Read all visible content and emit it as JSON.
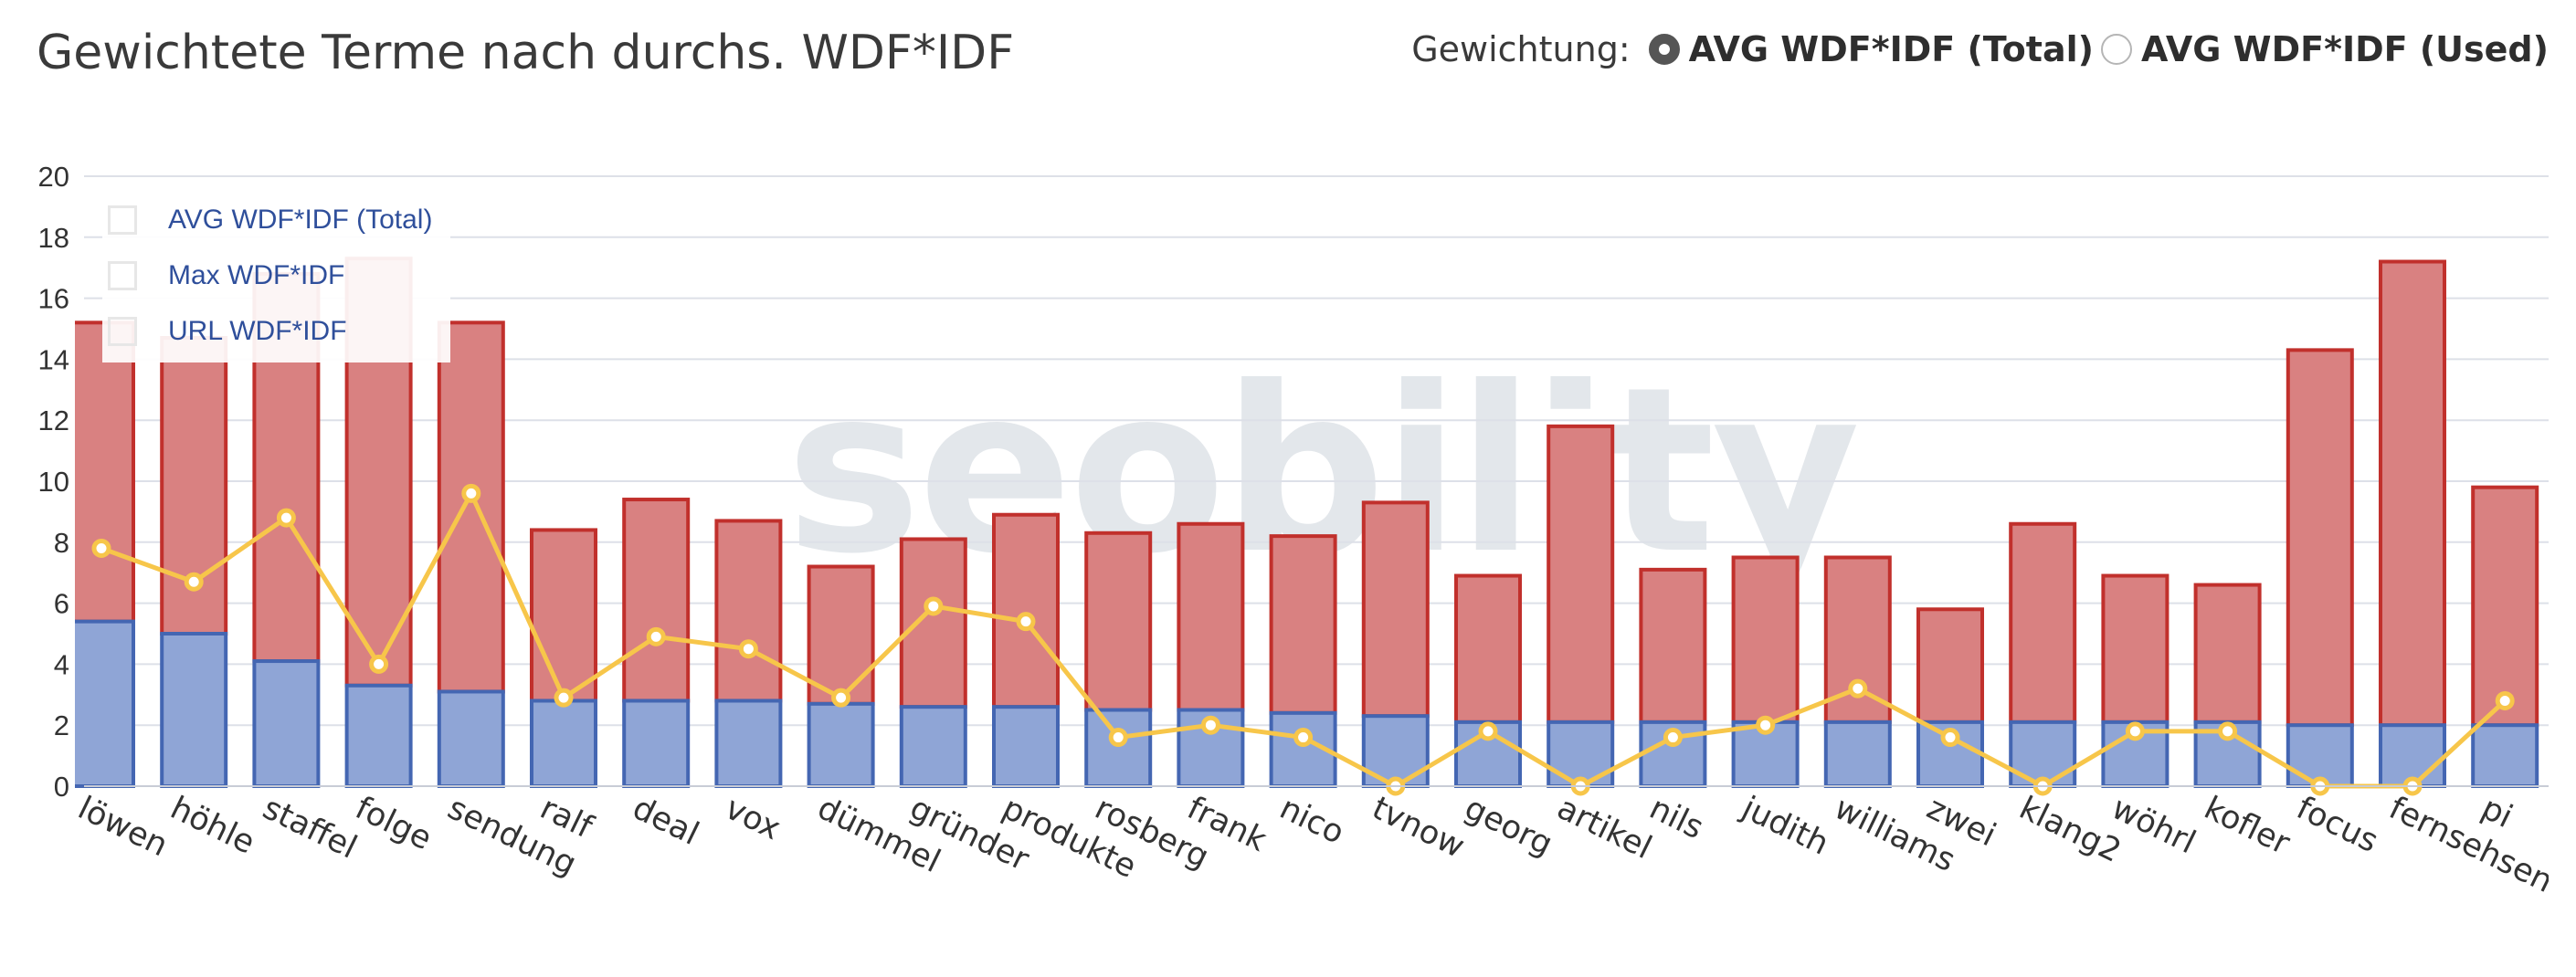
{
  "header": {
    "title": "Gewichtete Terme nach durchs. WDF*IDF",
    "weighting_label": "Gewichtung:",
    "options": [
      {
        "label": "AVG WDF*IDF (Total)",
        "checked": true
      },
      {
        "label": "AVG WDF*IDF (Used)",
        "checked": false
      }
    ]
  },
  "watermark": "seobility",
  "colors": {
    "avg_fill": "#8fa5d6",
    "avg_stroke": "#4466b2",
    "avg_legend": "#4466b2",
    "max_fill": "#d98181",
    "max_stroke": "#c1302c",
    "max_legend": "#c83232",
    "url_line": "#f7c64a",
    "url_legend": "#ffd35c",
    "grid": "#dde0e8",
    "axis_text": "#333333"
  },
  "legend": [
    {
      "label": "AVG WDF*IDF (Total)",
      "color": "#4466b2"
    },
    {
      "label": "Max WDF*IDF",
      "color": "#c83232"
    },
    {
      "label": "URL WDF*IDF",
      "color": "#ffd35c"
    }
  ],
  "chart_data": {
    "type": "bar",
    "stacked": true,
    "ylim": [
      0,
      20
    ],
    "yticks": [
      0,
      2,
      4,
      6,
      8,
      10,
      12,
      14,
      16,
      18,
      20
    ],
    "grid": true,
    "legend_position": "top-left",
    "categories": [
      "löwen",
      "höhle",
      "staffel",
      "folge",
      "sendung",
      "ralf",
      "deal",
      "vox",
      "dümmel",
      "gründer",
      "produkte",
      "rosberg",
      "frank",
      "nico",
      "tvnow",
      "georg",
      "artikel",
      "nils",
      "judith",
      "williams",
      "zwei",
      "klang2",
      "wöhrl",
      "kofler",
      "focus",
      "fernsehsender",
      "pi"
    ],
    "series": [
      {
        "name": "AVG WDF*IDF (Total)",
        "kind": "bar",
        "values": [
          5.4,
          5.0,
          4.1,
          3.3,
          3.1,
          2.8,
          2.8,
          2.8,
          2.7,
          2.6,
          2.6,
          2.5,
          2.5,
          2.4,
          2.3,
          2.1,
          2.1,
          2.1,
          2.1,
          2.1,
          2.1,
          2.1,
          2.1,
          2.1,
          2.0,
          2.0,
          2.0
        ]
      },
      {
        "name": "Max WDF*IDF",
        "kind": "bar",
        "values": [
          9.8,
          9.7,
          12.7,
          14.0,
          12.1,
          5.6,
          6.6,
          5.9,
          4.5,
          5.5,
          6.3,
          5.8,
          6.1,
          5.8,
          7.0,
          4.8,
          9.7,
          5.0,
          5.4,
          5.4,
          3.7,
          6.5,
          4.8,
          4.5,
          12.3,
          15.2,
          7.8
        ]
      },
      {
        "name": "URL WDF*IDF",
        "kind": "line",
        "values": [
          7.8,
          6.7,
          8.8,
          4.0,
          9.6,
          2.9,
          4.9,
          4.5,
          2.9,
          5.9,
          5.4,
          1.6,
          2.0,
          1.6,
          0,
          1.8,
          0,
          1.6,
          2.0,
          3.2,
          1.6,
          0,
          1.8,
          1.8,
          0,
          0,
          2.8
        ]
      }
    ]
  }
}
